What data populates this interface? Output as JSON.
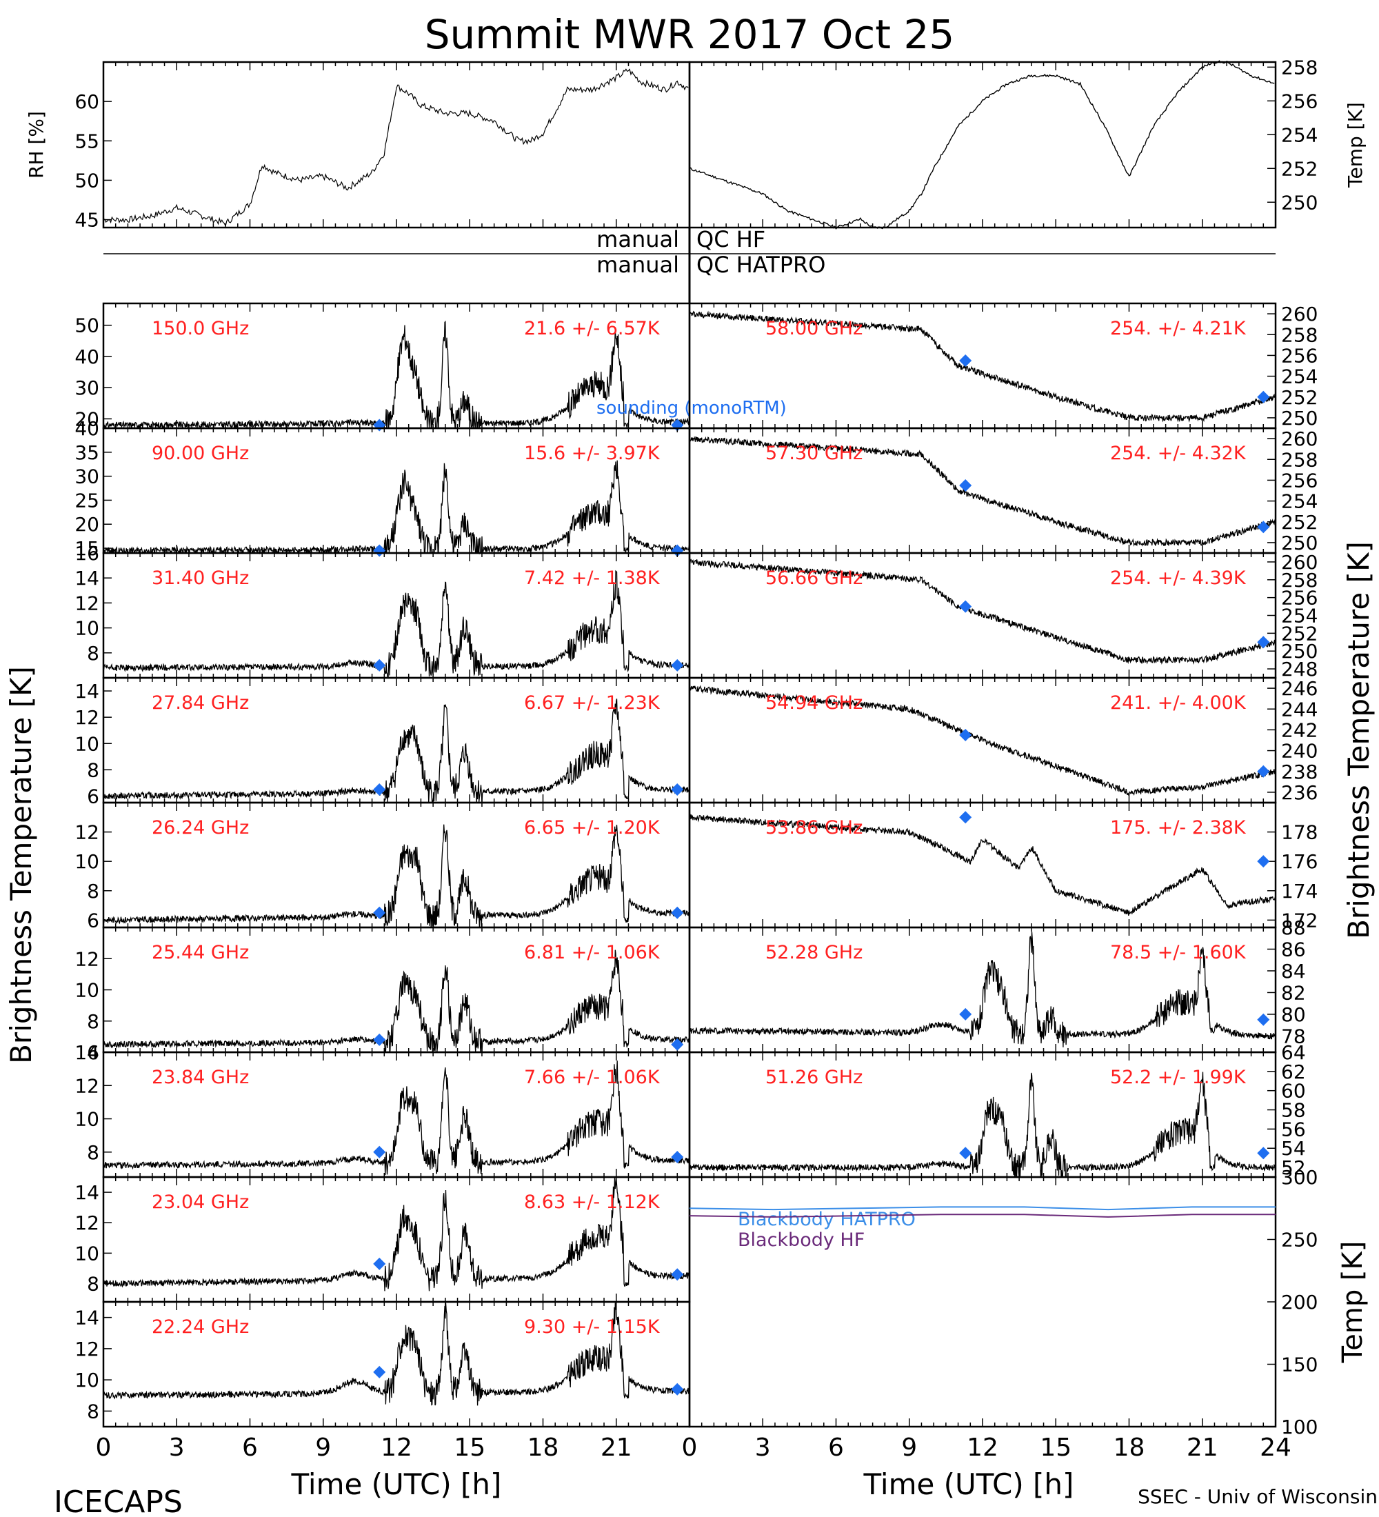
{
  "title": "Summit MWR 2017 Oct 25",
  "footer_left": "ICECAPS",
  "footer_right": "SSEC - Univ of Wisconsin",
  "colors": {
    "trace": "#000000",
    "stats": "#ff2020",
    "sounding": "#1e6ef0",
    "bb_hatpro": "#3b8ee8",
    "bb_hf": "#6a2a7a"
  },
  "chart_data": [
    {
      "id": "rh",
      "type": "line",
      "ylabel": "RH [%]",
      "ylim": [
        44,
        65
      ],
      "yticks": [
        45,
        50,
        55,
        60
      ],
      "xlim": [
        0,
        24
      ],
      "x": [
        0,
        1,
        2,
        3,
        4,
        5,
        6,
        6.5,
        7,
        8,
        9,
        10,
        10.5,
        11,
        11.5,
        12,
        12.5,
        13,
        14,
        15,
        16,
        17,
        17.5,
        18,
        19,
        20,
        21,
        21.5,
        22,
        23,
        23.5,
        24
      ],
      "series": [
        {
          "values": [
            45,
            45,
            45.5,
            46.5,
            45.5,
            44.5,
            47,
            52,
            51,
            50,
            50.5,
            49,
            50,
            51,
            53.5,
            62,
            61,
            59.5,
            58.5,
            58.5,
            57.5,
            55,
            55,
            56,
            61.5,
            61.5,
            63,
            64,
            62.5,
            61.5,
            62.5,
            61.5
          ]
        }
      ]
    },
    {
      "id": "temp",
      "type": "line",
      "ylabel": "Temp [K]",
      "ylim": [
        248.5,
        258.3
      ],
      "yticks": [
        250,
        252,
        254,
        256,
        258
      ],
      "xlim": [
        0,
        24
      ],
      "x": [
        0,
        1,
        2,
        3,
        4,
        5,
        6,
        7,
        7.5,
        8,
        9,
        9.5,
        10,
        11,
        12,
        13,
        14,
        15,
        16,
        17,
        17.5,
        18,
        19,
        20,
        21,
        21.5,
        22,
        23,
        24
      ],
      "series": [
        {
          "values": [
            252,
            251.5,
            251,
            250.5,
            249.5,
            249,
            248.5,
            249,
            248.5,
            248.5,
            249.5,
            250.5,
            252,
            254.5,
            256,
            257,
            257.5,
            257.5,
            257,
            254.5,
            253,
            251.5,
            254.5,
            256.5,
            258,
            258.3,
            258.3,
            257.5,
            257
          ]
        }
      ]
    },
    {
      "id": "qc",
      "type": "table",
      "rows": [
        {
          "left": "manual",
          "right": "QC HF"
        },
        {
          "left": "manual",
          "right": "QC HATPRO"
        }
      ]
    },
    {
      "id": "tb-left",
      "type": "line",
      "xlabel": "Time (UTC) [h]",
      "ylabel": "Brightness Temperature [K]",
      "xlim": [
        0,
        24
      ],
      "xticks": [
        0,
        3,
        6,
        9,
        12,
        15,
        18,
        21
      ],
      "panels": [
        {
          "freq": "150.0 GHz",
          "mean": "21.6",
          "pm": "+/-",
          "std": "6.57K",
          "ylim": [
            17,
            57
          ],
          "yticks": [
            20,
            30,
            40,
            50
          ],
          "base": 18,
          "peaks": [
            45,
            30,
            47,
            25,
            40
          ],
          "end": 19,
          "sounding": [
            [
              11.3,
              18
            ],
            [
              23.5,
              18
            ]
          ],
          "note": "sounding (monoRTM)"
        },
        {
          "freq": "90.00 GHz",
          "mean": "15.6",
          "pm": "+/-",
          "std": "3.97K",
          "ylim": [
            14,
            40
          ],
          "yticks": [
            15,
            20,
            25,
            30,
            35,
            40
          ],
          "base": 14.5,
          "peaks": [
            28,
            20,
            31,
            20,
            28
          ],
          "end": 15,
          "sounding": [
            [
              11.3,
              14.5
            ],
            [
              23.5,
              14.5
            ]
          ]
        },
        {
          "freq": "31.40 GHz",
          "mean": "7.42",
          "pm": "+/-",
          "std": "1.38K",
          "ylim": [
            6,
            16
          ],
          "yticks": [
            8,
            10,
            12,
            14,
            16
          ],
          "base": 6.8,
          "peaks": [
            11.5,
            10.5,
            13.5,
            10,
            12
          ],
          "end": 7,
          "sounding": [
            [
              11.3,
              7
            ],
            [
              23.5,
              7
            ]
          ]
        },
        {
          "freq": "27.84 GHz",
          "mean": "6.67",
          "pm": "+/-",
          "std": "1.23K",
          "ylim": [
            5.5,
            15
          ],
          "yticks": [
            6,
            8,
            10,
            12,
            14
          ],
          "base": 6,
          "peaks": [
            10,
            9.5,
            12,
            9,
            11
          ],
          "end": 6.5,
          "sounding": [
            [
              11.3,
              6.5
            ],
            [
              23.5,
              6.5
            ]
          ]
        },
        {
          "freq": "26.24 GHz",
          "mean": "6.65",
          "pm": "+/-",
          "std": "1.20K",
          "ylim": [
            5.5,
            14
          ],
          "yticks": [
            6,
            8,
            10,
            12
          ],
          "base": 6,
          "peaks": [
            10,
            9.5,
            12,
            8.5,
            10.5
          ],
          "end": 6.5,
          "sounding": [
            [
              11.3,
              6.5
            ],
            [
              23.5,
              6.5
            ]
          ]
        },
        {
          "freq": "25.44 GHz",
          "mean": "6.81",
          "pm": "+/-",
          "std": "1.06K",
          "ylim": [
            6,
            14
          ],
          "yticks": [
            6,
            8,
            10,
            12
          ],
          "base": 6.5,
          "peaks": [
            10,
            9,
            11.5,
            9,
            10.5
          ],
          "end": 6.8,
          "sounding": [
            [
              11.3,
              6.8
            ],
            [
              23.5,
              6.5
            ]
          ]
        },
        {
          "freq": "23.84 GHz",
          "mean": "7.66",
          "pm": "+/-",
          "std": "1.06K",
          "ylim": [
            6.5,
            14
          ],
          "yticks": [
            8,
            10,
            12,
            14
          ],
          "base": 7.2,
          "peaks": [
            11,
            10,
            12.5,
            10,
            11.5
          ],
          "end": 7.5,
          "sounding": [
            [
              11.3,
              8
            ],
            [
              23.5,
              7.7
            ]
          ]
        },
        {
          "freq": "23.04 GHz",
          "mean": "8.63",
          "pm": "+/-",
          "std": "1.12K",
          "ylim": [
            6.8,
            15
          ],
          "yticks": [
            8,
            10,
            12,
            14
          ],
          "base": 8,
          "peaks": [
            12,
            10.5,
            13.5,
            11,
            13
          ],
          "end": 8.5,
          "sounding": [
            [
              11.3,
              9.3
            ],
            [
              23.5,
              8.6
            ]
          ]
        },
        {
          "freq": "22.24 GHz",
          "mean": "9.30",
          "pm": "+/-",
          "std": "1.15K",
          "ylim": [
            7,
            15
          ],
          "yticks": [
            8,
            10,
            12,
            14
          ],
          "base": 9,
          "peaks": [
            12.5,
            11.5,
            14,
            11.5,
            13
          ],
          "end": 9.3,
          "sounding": [
            [
              11.3,
              10.5
            ],
            [
              23.5,
              9.4
            ]
          ]
        }
      ]
    },
    {
      "id": "tb-right",
      "type": "line",
      "xlabel": "Time (UTC) [h]",
      "ylabel": "Brightness Temperature [K]",
      "xlim": [
        0,
        24
      ],
      "xticks": [
        0,
        3,
        6,
        9,
        12,
        15,
        18,
        21,
        24
      ],
      "panels": [
        {
          "freq": "58.00 GHz",
          "mean": "254.",
          "pm": "+/-",
          "std": "4.21K",
          "ylim": [
            249,
            261
          ],
          "yticks": [
            250,
            252,
            254,
            256,
            258,
            260
          ],
          "profile": [
            [
              0,
              260
            ],
            [
              9.5,
              258.5
            ],
            [
              11,
              255
            ],
            [
              15,
              252
            ],
            [
              18,
              250
            ],
            [
              21,
              250
            ],
            [
              24,
              252
            ]
          ],
          "sounding": [
            [
              11.3,
              255.5
            ],
            [
              23.5,
              252
            ]
          ]
        },
        {
          "freq": "57.30 GHz",
          "mean": "254.",
          "pm": "+/-",
          "std": "4.32K",
          "ylim": [
            249,
            261
          ],
          "yticks": [
            250,
            252,
            254,
            256,
            258,
            260
          ],
          "profile": [
            [
              0,
              260
            ],
            [
              9.5,
              258.5
            ],
            [
              11,
              255
            ],
            [
              15,
              252
            ],
            [
              18,
              250
            ],
            [
              21,
              250
            ],
            [
              24,
              252
            ]
          ],
          "sounding": [
            [
              11.3,
              255.5
            ],
            [
              23.5,
              251.5
            ]
          ]
        },
        {
          "freq": "56.66 GHz",
          "mean": "254.",
          "pm": "+/-",
          "std": "4.39K",
          "ylim": [
            247,
            261
          ],
          "yticks": [
            248,
            250,
            252,
            254,
            256,
            258,
            260
          ],
          "profile": [
            [
              0,
              260
            ],
            [
              9.5,
              258
            ],
            [
              11,
              255
            ],
            [
              15,
              251.5
            ],
            [
              18,
              249
            ],
            [
              21,
              249
            ],
            [
              24,
              251
            ]
          ],
          "sounding": [
            [
              11.3,
              255
            ],
            [
              23.5,
              251
            ]
          ]
        },
        {
          "freq": "54.94 GHz",
          "mean": "241.",
          "pm": "+/-",
          "std": "4.00K",
          "ylim": [
            235,
            247
          ],
          "yticks": [
            236,
            238,
            240,
            242,
            244,
            246
          ],
          "profile": [
            [
              0,
              246
            ],
            [
              9,
              244
            ],
            [
              12,
              241
            ],
            [
              15,
              238.5
            ],
            [
              18,
              236
            ],
            [
              21,
              236.5
            ],
            [
              24,
              238
            ]
          ],
          "sounding": [
            [
              11.3,
              241.5
            ],
            [
              23.5,
              238
            ]
          ]
        },
        {
          "freq": "53.86 GHz",
          "mean": "175.",
          "pm": "+/-",
          "std": "2.38K",
          "ylim": [
            171.5,
            180
          ],
          "yticks": [
            172,
            174,
            176,
            178
          ],
          "profile": [
            [
              0,
              179
            ],
            [
              9,
              178
            ],
            [
              11.5,
              176
            ],
            [
              12,
              177.5
            ],
            [
              13.5,
              175.5
            ],
            [
              14,
              177
            ],
            [
              15,
              174
            ],
            [
              18,
              172.5
            ],
            [
              20,
              174.5
            ],
            [
              21,
              175.5
            ],
            [
              22,
              173
            ],
            [
              24,
              173.5
            ]
          ],
          "sounding": [
            [
              11.3,
              179
            ],
            [
              23.5,
              176
            ]
          ]
        },
        {
          "freq": "52.28 GHz",
          "mean": "78.5",
          "pm": "+/-",
          "std": "1.60K",
          "ylim": [
            76.5,
            88
          ],
          "yticks": [
            78,
            80,
            82,
            84,
            86,
            88
          ],
          "base": 78.5,
          "peaks": [
            84,
            82,
            87,
            80,
            84
          ],
          "end": 78,
          "sounding": [
            [
              11.3,
              80
            ],
            [
              23.5,
              79.5
            ]
          ]
        },
        {
          "freq": "51.26 GHz",
          "mean": "52.2",
          "pm": "+/-",
          "std": "1.99K",
          "ylim": [
            51,
            64
          ],
          "yticks": [
            52,
            54,
            56,
            58,
            60,
            62,
            64
          ],
          "base": 52,
          "peaks": [
            58,
            56,
            61,
            55,
            59
          ],
          "end": 52,
          "sounding": [
            [
              11.3,
              53.5
            ],
            [
              23.5,
              53.5
            ]
          ]
        }
      ]
    },
    {
      "id": "blackbody",
      "type": "line",
      "ylabel": "Temp [K]",
      "ylim": [
        100,
        300
      ],
      "yticks": [
        100,
        150,
        200,
        250,
        300
      ],
      "xlim": [
        0,
        24
      ],
      "series": [
        {
          "name": "Blackbody HATPRO",
          "values": [
            275,
            274,
            275,
            276,
            276,
            274,
            276,
            276
          ]
        },
        {
          "name": "Blackbody HF",
          "values": [
            269,
            268,
            269,
            270,
            270,
            268,
            270,
            270
          ]
        }
      ]
    }
  ]
}
